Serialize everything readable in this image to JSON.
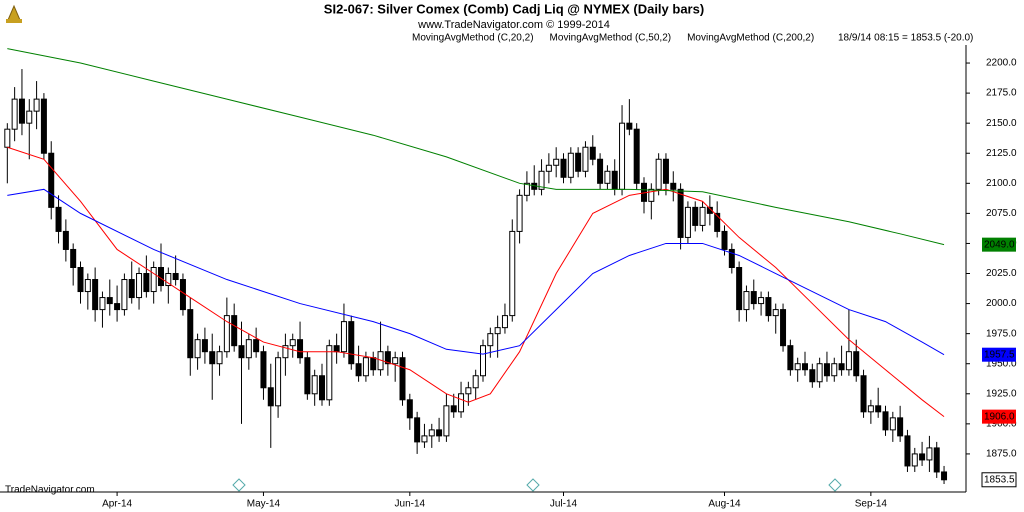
{
  "chart_data": {
    "type": "candlestick",
    "title": "SI2-067:  Silver Comex (Comb) Cadj Liq @ NYMEX  (Daily bars)",
    "subtitle": "www.TradeNavigator.com © 1999-2014",
    "readout": "18/9/14 08:15 = 1853.5 (-20.0)",
    "footer": "TradeNavigator.com",
    "xlim": [
      -1,
      131
    ],
    "xticks": [
      {
        "value": 15,
        "label": "Apr-14"
      },
      {
        "value": 35,
        "label": "May-14"
      },
      {
        "value": 55,
        "label": "Jun-14"
      },
      {
        "value": 76,
        "label": "Jul-14"
      },
      {
        "value": 98,
        "label": "Aug-14"
      },
      {
        "value": 118,
        "label": "Sep-14"
      }
    ],
    "ylim": [
      1845,
      2215
    ],
    "yticks": [
      {
        "value": 1875,
        "label": "1875.0"
      },
      {
        "value": 1900,
        "label": "1900.0"
      },
      {
        "value": 1925,
        "label": "1925.0"
      },
      {
        "value": 1950,
        "label": "1950.0"
      },
      {
        "value": 1975,
        "label": "1975.0"
      },
      {
        "value": 2000,
        "label": "2000.0"
      },
      {
        "value": 2025,
        "label": "2025.0"
      },
      {
        "value": 2050,
        "label": "2050.0"
      },
      {
        "value": 2075,
        "label": "2075.0"
      },
      {
        "value": 2100,
        "label": "2100.0"
      },
      {
        "value": 2125,
        "label": "2125.0"
      },
      {
        "value": 2150,
        "label": "2150.0"
      },
      {
        "value": 2175,
        "label": "2175.0"
      },
      {
        "value": 2200,
        "label": "2200.0"
      }
    ],
    "series": [
      {
        "type": "candlestick",
        "color": "#000000",
        "end_label": "1853.5",
        "values": [
          [
            2130,
            2150,
            2100,
            2145
          ],
          [
            2145,
            2180,
            2135,
            2170
          ],
          [
            2170,
            2195,
            2140,
            2150
          ],
          [
            2150,
            2170,
            2120,
            2160
          ],
          [
            2160,
            2185,
            2145,
            2170
          ],
          [
            2170,
            2175,
            2120,
            2125
          ],
          [
            2125,
            2135,
            2070,
            2080
          ],
          [
            2080,
            2090,
            2050,
            2060
          ],
          [
            2060,
            2070,
            2035,
            2045
          ],
          [
            2045,
            2050,
            2015,
            2030
          ],
          [
            2030,
            2035,
            2000,
            2010
          ],
          [
            2010,
            2025,
            1995,
            2020
          ],
          [
            2020,
            2030,
            1985,
            1995
          ],
          [
            1995,
            2010,
            1980,
            2005
          ],
          [
            2005,
            2020,
            1990,
            2000
          ],
          [
            2000,
            2015,
            1985,
            1995
          ],
          [
            1995,
            2025,
            1990,
            2020
          ],
          [
            2020,
            2035,
            2000,
            2005
          ],
          [
            2005,
            2030,
            1995,
            2025
          ],
          [
            2025,
            2040,
            2005,
            2010
          ],
          [
            2010,
            2035,
            2000,
            2030
          ],
          [
            2030,
            2050,
            2010,
            2015
          ],
          [
            2015,
            2030,
            2000,
            2025
          ],
          [
            2025,
            2040,
            2015,
            2020
          ],
          [
            2020,
            2025,
            1990,
            1995
          ],
          [
            1995,
            2005,
            1940,
            1955
          ],
          [
            1955,
            1975,
            1945,
            1970
          ],
          [
            1970,
            1980,
            1950,
            1960
          ],
          [
            1960,
            1975,
            1920,
            1950
          ],
          [
            1950,
            1965,
            1940,
            1960
          ],
          [
            1960,
            2005,
            1955,
            1990
          ],
          [
            1990,
            2000,
            1960,
            1965
          ],
          [
            1965,
            1985,
            1900,
            1955
          ],
          [
            1955,
            1975,
            1945,
            1970
          ],
          [
            1970,
            1980,
            1955,
            1960
          ],
          [
            1960,
            1965,
            1920,
            1930
          ],
          [
            1930,
            1950,
            1880,
            1915
          ],
          [
            1915,
            1960,
            1905,
            1955
          ],
          [
            1955,
            1975,
            1940,
            1965
          ],
          [
            1965,
            1975,
            1955,
            1970
          ],
          [
            1970,
            1985,
            1950,
            1955
          ],
          [
            1955,
            1960,
            1920,
            1925
          ],
          [
            1925,
            1945,
            1915,
            1940
          ],
          [
            1940,
            1950,
            1915,
            1920
          ],
          [
            1920,
            1970,
            1915,
            1965
          ],
          [
            1965,
            1975,
            1950,
            1960
          ],
          [
            1960,
            2000,
            1955,
            1985
          ],
          [
            1985,
            1990,
            1945,
            1950
          ],
          [
            1950,
            1965,
            1935,
            1940
          ],
          [
            1940,
            1960,
            1935,
            1955
          ],
          [
            1955,
            1960,
            1940,
            1945
          ],
          [
            1945,
            1985,
            1940,
            1960
          ],
          [
            1960,
            1965,
            1940,
            1950
          ],
          [
            1950,
            1960,
            1935,
            1955
          ],
          [
            1955,
            1960,
            1915,
            1920
          ],
          [
            1920,
            1925,
            1895,
            1905
          ],
          [
            1905,
            1910,
            1875,
            1885
          ],
          [
            1885,
            1900,
            1880,
            1890
          ],
          [
            1890,
            1900,
            1880,
            1895
          ],
          [
            1895,
            1905,
            1885,
            1890
          ],
          [
            1890,
            1925,
            1885,
            1915
          ],
          [
            1915,
            1925,
            1905,
            1910
          ],
          [
            1910,
            1935,
            1905,
            1925
          ],
          [
            1925,
            1935,
            1915,
            1930
          ],
          [
            1930,
            1945,
            1920,
            1940
          ],
          [
            1940,
            1970,
            1935,
            1965
          ],
          [
            1965,
            1980,
            1955,
            1975
          ],
          [
            1975,
            1990,
            1955,
            1980
          ],
          [
            1980,
            2000,
            1975,
            1990
          ],
          [
            1990,
            2070,
            1985,
            2060
          ],
          [
            2060,
            2095,
            2050,
            2090
          ],
          [
            2090,
            2110,
            2085,
            2100
          ],
          [
            2100,
            2115,
            2090,
            2095
          ],
          [
            2095,
            2120,
            2090,
            2110
          ],
          [
            2110,
            2125,
            2100,
            2115
          ],
          [
            2115,
            2130,
            2105,
            2120
          ],
          [
            2120,
            2125,
            2100,
            2105
          ],
          [
            2105,
            2130,
            2100,
            2125
          ],
          [
            2125,
            2130,
            2105,
            2110
          ],
          [
            2110,
            2135,
            2105,
            2130
          ],
          [
            2130,
            2140,
            2115,
            2120
          ],
          [
            2120,
            2125,
            2095,
            2100
          ],
          [
            2100,
            2115,
            2095,
            2110
          ],
          [
            2110,
            2120,
            2090,
            2095
          ],
          [
            2095,
            2165,
            2090,
            2150
          ],
          [
            2150,
            2170,
            2140,
            2145
          ],
          [
            2145,
            2150,
            2095,
            2100
          ],
          [
            2100,
            2105,
            2075,
            2085
          ],
          [
            2085,
            2100,
            2070,
            2095
          ],
          [
            2095,
            2125,
            2090,
            2120
          ],
          [
            2120,
            2125,
            2090,
            2100
          ],
          [
            2100,
            2110,
            2085,
            2095
          ],
          [
            2095,
            2100,
            2045,
            2055
          ],
          [
            2055,
            2085,
            2050,
            2080
          ],
          [
            2080,
            2085,
            2060,
            2065
          ],
          [
            2065,
            2085,
            2060,
            2080
          ],
          [
            2080,
            2090,
            2065,
            2075
          ],
          [
            2075,
            2085,
            2055,
            2060
          ],
          [
            2060,
            2065,
            2040,
            2045
          ],
          [
            2045,
            2050,
            2025,
            2030
          ],
          [
            2030,
            2035,
            1985,
            1995
          ],
          [
            1995,
            2015,
            1985,
            2010
          ],
          [
            2010,
            2020,
            1995,
            2000
          ],
          [
            2000,
            2010,
            1990,
            2005
          ],
          [
            2005,
            2010,
            1985,
            1990
          ],
          [
            1990,
            2000,
            1975,
            1995
          ],
          [
            1995,
            2000,
            1960,
            1965
          ],
          [
            1965,
            1970,
            1940,
            1945
          ],
          [
            1945,
            1955,
            1935,
            1950
          ],
          [
            1950,
            1960,
            1940,
            1945
          ],
          [
            1945,
            1950,
            1930,
            1935
          ],
          [
            1935,
            1955,
            1930,
            1950
          ],
          [
            1950,
            1960,
            1935,
            1940
          ],
          [
            1940,
            1955,
            1935,
            1950
          ],
          [
            1950,
            1965,
            1940,
            1945
          ],
          [
            1945,
            1995,
            1940,
            1960
          ],
          [
            1960,
            1970,
            1935,
            1940
          ],
          [
            1940,
            1945,
            1905,
            1910
          ],
          [
            1910,
            1920,
            1900,
            1915
          ],
          [
            1915,
            1930,
            1905,
            1910
          ],
          [
            1910,
            1915,
            1890,
            1895
          ],
          [
            1895,
            1910,
            1885,
            1905
          ],
          [
            1905,
            1915,
            1885,
            1890
          ],
          [
            1890,
            1895,
            1860,
            1865
          ],
          [
            1865,
            1880,
            1860,
            1875
          ],
          [
            1875,
            1885,
            1865,
            1870
          ],
          [
            1870,
            1890,
            1860,
            1880
          ],
          [
            1880,
            1885,
            1855,
            1860
          ],
          [
            1860,
            1865,
            1850,
            1853.5
          ]
        ]
      },
      {
        "type": "line",
        "name": "MovingAvgMethod (C,20,2)",
        "color": "#ff0000",
        "end_label": "1906.0",
        "x": [
          0,
          5,
          10,
          15,
          20,
          25,
          30,
          35,
          40,
          45,
          50,
          55,
          60,
          63,
          66,
          70,
          75,
          80,
          85,
          90,
          95,
          100,
          105,
          110,
          115,
          120,
          125,
          128
        ],
        "values": [
          2130,
          2120,
          2085,
          2045,
          2025,
          2005,
          1985,
          1968,
          1960,
          1960,
          1955,
          1945,
          1925,
          1918,
          1925,
          1960,
          2025,
          2075,
          2090,
          2095,
          2085,
          2055,
          2030,
          2000,
          1970,
          1945,
          1920,
          1906
        ]
      },
      {
        "type": "line",
        "name": "MovingAvgMethod (C,50,2)",
        "color": "#0000ff",
        "end_label": "1957.5",
        "x": [
          0,
          5,
          10,
          20,
          30,
          40,
          50,
          55,
          60,
          65,
          70,
          75,
          80,
          85,
          90,
          95,
          100,
          105,
          110,
          115,
          120,
          125,
          128
        ],
        "values": [
          2090,
          2095,
          2075,
          2045,
          2020,
          2000,
          1985,
          1975,
          1962,
          1958,
          1965,
          1995,
          2025,
          2040,
          2050,
          2050,
          2040,
          2025,
          2010,
          1995,
          1985,
          1968,
          1957.5
        ]
      },
      {
        "type": "line",
        "name": "MovingAvgMethod (C,200,2)",
        "color": "#008000",
        "end_label": "2049.0",
        "x": [
          0,
          10,
          20,
          30,
          40,
          50,
          60,
          70,
          75,
          85,
          95,
          105,
          115,
          122,
          128
        ],
        "values": [
          2212,
          2200,
          2185,
          2170,
          2155,
          2140,
          2122,
          2100,
          2095,
          2095,
          2093,
          2080,
          2068,
          2058,
          2049
        ]
      }
    ]
  }
}
